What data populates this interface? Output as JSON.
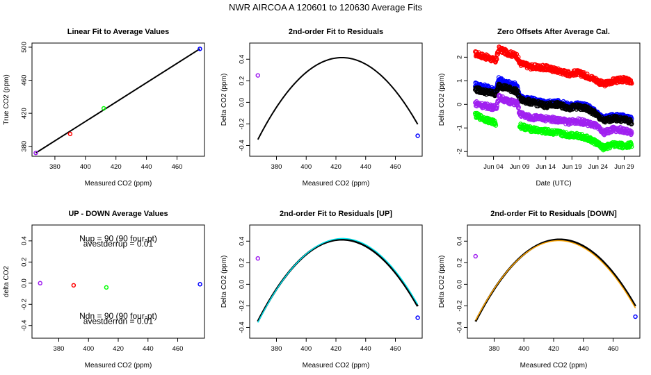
{
  "title": "NWR   AIRCOA A   120601 to 120630   Average Fits",
  "colors": {
    "red": "#ff0000",
    "green": "#00ff00",
    "blue": "#0000ff",
    "magenta": "#a020f0",
    "black": "#000000",
    "cyan": "#00e5ee",
    "orange": "#ffa500"
  },
  "chart_data": [
    {
      "id": "p1",
      "type": "scatter",
      "title": "Linear Fit to Average Values",
      "xlabel": "Measured CO2 (ppm)",
      "ylabel": "True CO2 (ppm)",
      "xlim": [
        365,
        478
      ],
      "ylim": [
        368,
        505
      ],
      "xticks": [
        380,
        400,
        420,
        440,
        460
      ],
      "yticks": [
        380,
        420,
        460,
        500
      ],
      "points": [
        {
          "x": 367.5,
          "y": 372,
          "color": "magenta"
        },
        {
          "x": 390,
          "y": 395,
          "color": "red"
        },
        {
          "x": 412,
          "y": 426,
          "color": "green"
        },
        {
          "x": 475,
          "y": 498,
          "color": "blue"
        }
      ],
      "lines": [
        {
          "fn": "linear",
          "x0": 367.5,
          "y0": 372,
          "x1": 475,
          "y1": 498,
          "color": "black"
        }
      ]
    },
    {
      "id": "p2",
      "type": "scatter",
      "title": "2nd-order Fit to Residuals",
      "xlabel": "Measured CO2 (ppm)",
      "ylabel": "Delta CO2 (ppm)",
      "xlim": [
        362,
        478
      ],
      "ylim": [
        -0.5,
        0.55
      ],
      "xticks": [
        380,
        400,
        420,
        440,
        460
      ],
      "yticks": [
        -0.4,
        -0.2,
        0.0,
        0.2,
        0.4
      ],
      "points": [
        {
          "x": 367.5,
          "y": 0.25,
          "color": "magenta"
        },
        {
          "x": 475,
          "y": -0.31,
          "color": "blue"
        }
      ],
      "lines": [
        {
          "fn": "quad",
          "a": -0.000238,
          "h": 424,
          "k": 0.415,
          "from": 367.5,
          "to": 475,
          "color": "black"
        }
      ]
    },
    {
      "id": "p3",
      "type": "scatter",
      "title": "Zero Offsets After Average Cal.",
      "xlabel": "Date (UTC)",
      "ylabel": "Delta CO2 (ppm)",
      "xlim": [
        -1,
        32
      ],
      "ylim": [
        -2.2,
        2.6
      ],
      "xticks": [
        4,
        9,
        14,
        19,
        24,
        29
      ],
      "xticklabels": [
        "Jun 04",
        "Jun 09",
        "Jun 14",
        "Jun 19",
        "Jun 24",
        "Jun 29"
      ],
      "yticks": [
        -2,
        -1,
        0,
        1,
        2
      ],
      "series": [
        {
          "name": "red",
          "color": "red",
          "t": [
            0.5,
            2,
            4.5,
            5,
            6.5,
            8.5,
            9,
            11,
            14,
            16,
            18.5,
            20,
            22,
            23.5,
            25,
            27,
            29,
            30.5
          ],
          "v": [
            2.15,
            2.05,
            1.85,
            2.35,
            2.2,
            2.05,
            1.75,
            1.6,
            1.55,
            1.45,
            1.3,
            1.35,
            1.2,
            1.05,
            0.85,
            1.0,
            1.05,
            0.95
          ]
        },
        {
          "name": "blue",
          "color": "blue",
          "t": [
            0.5,
            2,
            4.5,
            5,
            6.5,
            8.5,
            9,
            11,
            14,
            16,
            18.5,
            20,
            22,
            23.5,
            25,
            27,
            29,
            30.5
          ],
          "v": [
            0.85,
            0.75,
            0.6,
            1.05,
            0.9,
            0.8,
            0.3,
            0.2,
            0.05,
            0.1,
            -0.05,
            0.0,
            -0.1,
            -0.3,
            -0.6,
            -0.5,
            -0.55,
            -0.65
          ]
        },
        {
          "name": "black",
          "color": "black",
          "t": [
            0.5,
            2,
            4.5,
            5,
            6.5,
            8.5,
            9,
            11,
            14,
            16,
            18.5,
            20,
            22,
            23.5,
            25,
            27,
            29,
            30.5
          ],
          "v": [
            0.65,
            0.55,
            0.45,
            0.8,
            0.7,
            0.55,
            0.2,
            0.1,
            -0.05,
            0.0,
            -0.15,
            -0.1,
            -0.2,
            -0.4,
            -0.7,
            -0.6,
            -0.65,
            -0.75
          ]
        },
        {
          "name": "magenta",
          "color": "magenta",
          "t": [
            0.5,
            2,
            4.5,
            5,
            6.5,
            8.5,
            9,
            11,
            14,
            16,
            18.5,
            20,
            22,
            23.5,
            25,
            27,
            29,
            30.5
          ],
          "v": [
            0.05,
            -0.05,
            -0.15,
            0.3,
            0.15,
            0.05,
            -0.4,
            -0.55,
            -0.6,
            -0.65,
            -0.75,
            -0.7,
            -0.8,
            -0.9,
            -1.2,
            -1.05,
            -1.1,
            -1.25
          ]
        },
        {
          "name": "green",
          "color": "green",
          "t": [
            0.5,
            2,
            4.5,
            9,
            11,
            14,
            16,
            18.5,
            20,
            22,
            23.5,
            25,
            27,
            29,
            30.5
          ],
          "v": [
            -0.45,
            -0.6,
            -0.8,
            -0.9,
            -1.05,
            -1.15,
            -1.2,
            -1.3,
            -1.3,
            -1.45,
            -1.6,
            -1.85,
            -1.7,
            -1.75,
            -1.7
          ]
        }
      ]
    },
    {
      "id": "p4",
      "type": "scatter",
      "title": "UP - DOWN Average Values",
      "xlabel": "Measured CO2 (ppm)",
      "ylabel": "delta CO2",
      "xlim": [
        362,
        478
      ],
      "ylim": [
        -0.52,
        0.55
      ],
      "xticks": [
        380,
        400,
        420,
        440,
        460
      ],
      "yticks": [
        -0.4,
        -0.2,
        0.0,
        0.2,
        0.4
      ],
      "points": [
        {
          "x": 367.5,
          "y": 0.0,
          "color": "magenta"
        },
        {
          "x": 390,
          "y": -0.02,
          "color": "red"
        },
        {
          "x": 412,
          "y": -0.04,
          "color": "green"
        },
        {
          "x": 475,
          "y": -0.01,
          "color": "blue"
        }
      ],
      "annotations": [
        {
          "text": "Nup = 90 (90 four-pt)",
          "x": 420,
          "y": 0.395
        },
        {
          "text": "avestderrup =  0.01",
          "x": 420,
          "y": 0.345
        },
        {
          "text": "Ndn = 90 (90 four-pt)",
          "x": 420,
          "y": -0.335
        },
        {
          "text": "avestderrdn =  0.01",
          "x": 420,
          "y": -0.385
        }
      ]
    },
    {
      "id": "p5",
      "type": "scatter",
      "title": "2nd-order Fit to Residuals [UP]",
      "xlabel": "Measured CO2 (ppm)",
      "ylabel": "Delta CO2 (ppm)",
      "xlim": [
        362,
        478
      ],
      "ylim": [
        -0.5,
        0.55
      ],
      "xticks": [
        380,
        400,
        420,
        440,
        460
      ],
      "yticks": [
        -0.4,
        -0.2,
        0.0,
        0.2,
        0.4
      ],
      "points": [
        {
          "x": 367.5,
          "y": 0.24,
          "color": "magenta"
        },
        {
          "x": 475,
          "y": -0.31,
          "color": "blue"
        }
      ],
      "lines": [
        {
          "fn": "quad",
          "a": -0.000238,
          "h": 424,
          "k": 0.415,
          "from": 367.5,
          "to": 475,
          "color": "black",
          "width": 3
        },
        {
          "fn": "quad",
          "a": -0.00024,
          "h": 424.5,
          "k": 0.425,
          "from": 367.5,
          "to": 475,
          "color": "cyan",
          "width": 1.5
        }
      ]
    },
    {
      "id": "p6",
      "type": "scatter",
      "title": "2nd-order Fit to Residuals [DOWN]",
      "xlabel": "Measured CO2 (ppm)",
      "ylabel": "Delta CO2 (ppm)",
      "xlim": [
        362,
        478
      ],
      "ylim": [
        -0.5,
        0.55
      ],
      "xticks": [
        380,
        400,
        420,
        440,
        460
      ],
      "yticks": [
        -0.4,
        -0.2,
        0.0,
        0.2,
        0.4
      ],
      "points": [
        {
          "x": 367.5,
          "y": 0.26,
          "color": "magenta"
        },
        {
          "x": 475,
          "y": -0.3,
          "color": "blue"
        }
      ],
      "lines": [
        {
          "fn": "quad",
          "a": -0.000238,
          "h": 424,
          "k": 0.415,
          "from": 367.5,
          "to": 475,
          "color": "black",
          "width": 3
        },
        {
          "fn": "quad",
          "a": -0.000236,
          "h": 423.5,
          "k": 0.405,
          "from": 367.5,
          "to": 475,
          "color": "orange",
          "width": 1.5
        }
      ]
    }
  ]
}
